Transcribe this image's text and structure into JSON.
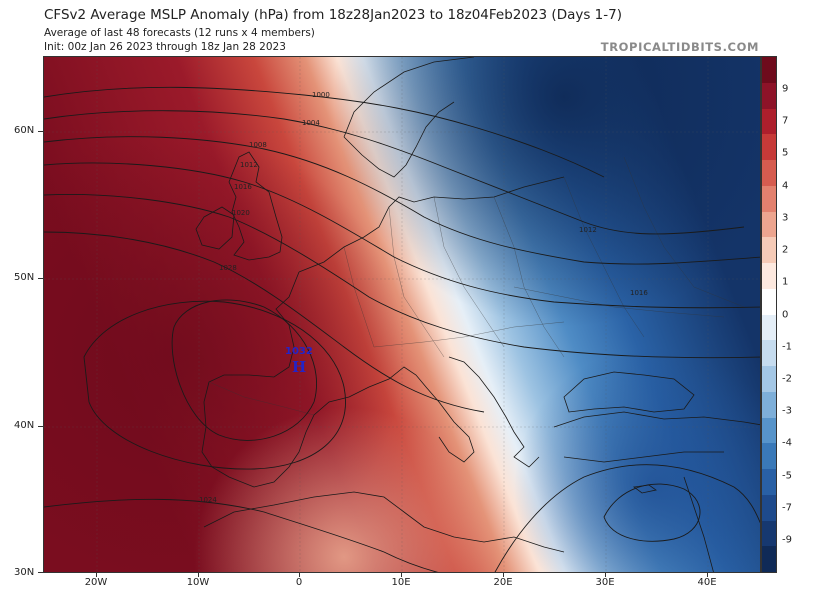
{
  "header": {
    "title": "CFSv2 Average MSLP Anomaly (hPa) from 18z28Jan2023 to 18z04Feb2023 (Days 1-7)",
    "subtitle": "Average of last 48 forecasts (12 runs x 4 members)",
    "init": "Init: 00z Jan 26 2023 through 18z Jan 28 2023",
    "credit": "TROPICALTIDBITS.COM"
  },
  "axes": {
    "latitudes": [
      "60N",
      "50N",
      "40N",
      "30N"
    ],
    "longitudes": [
      "20W",
      "10W",
      "0",
      "10E",
      "20E",
      "30E",
      "40E"
    ]
  },
  "colorbar": {
    "labels": [
      "9",
      "7",
      "5",
      "4",
      "3",
      "2",
      "1",
      "0",
      "-1",
      "-2",
      "-3",
      "-4",
      "-5",
      "-7",
      "-9"
    ],
    "colors": [
      "#6e0b1c",
      "#8d1328",
      "#ad1f2c",
      "#c63a38",
      "#d65c4f",
      "#e3816e",
      "#eda58f",
      "#f6cbb7",
      "#fde9df",
      "#ffffff",
      "#e4eef7",
      "#c6dcef",
      "#a4c7e5",
      "#7eafd9",
      "#5794ca",
      "#3a79b8",
      "#2960a5",
      "#1e4a8c",
      "#163870",
      "#0f2a57"
    ]
  },
  "isobars": {
    "labels": [
      "1000",
      "1004",
      "1008",
      "1012",
      "1012",
      "1016",
      "1016",
      "1020",
      "1024",
      "1028"
    ]
  },
  "high_center": {
    "value": "1032",
    "symbol": "H"
  }
}
